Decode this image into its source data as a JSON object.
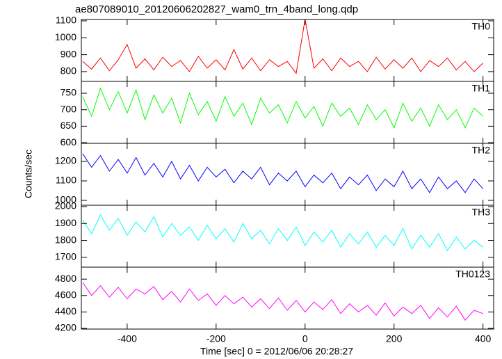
{
  "figure": {
    "title": "ae807089010_20120606202827_wam0_trn_4band_long.qdp",
    "ylabel": "Counts/sec",
    "xlabel": "Time [sec] 0 = 2012/06/06 20:28:27",
    "x": [
      -500,
      -480,
      -460,
      -440,
      -420,
      -400,
      -380,
      -360,
      -340,
      -320,
      -300,
      -280,
      -260,
      -240,
      -220,
      -200,
      -180,
      -160,
      -140,
      -120,
      -100,
      -80,
      -60,
      -40,
      -20,
      0,
      20,
      40,
      60,
      80,
      100,
      120,
      140,
      160,
      180,
      200,
      220,
      240,
      260,
      280,
      300,
      320,
      340,
      360,
      380,
      400
    ],
    "xlim": [
      -503,
      424
    ],
    "xticks": [
      -400,
      -200,
      0,
      200,
      400
    ]
  },
  "chart_data": [
    {
      "type": "line",
      "ylim": [
        742,
        1108
      ],
      "yticks": [
        800,
        900,
        1000,
        1100
      ],
      "series": [
        {
          "name": "TH0",
          "color": "#ff0000",
          "values": [
            860,
            815,
            880,
            805,
            870,
            960,
            820,
            875,
            810,
            885,
            830,
            865,
            800,
            890,
            820,
            870,
            810,
            930,
            815,
            880,
            805,
            870,
            830,
            860,
            790,
            1110,
            820,
            875,
            805,
            880,
            830,
            860,
            800,
            885,
            815,
            870,
            820,
            880,
            800,
            865,
            830,
            880,
            810,
            860,
            800,
            850
          ]
        }
      ]
    },
    {
      "type": "line",
      "ylim": [
        598,
        786
      ],
      "yticks": [
        600,
        650,
        700,
        750
      ],
      "series": [
        {
          "name": "TH1",
          "color": "#00ff00",
          "values": [
            740,
            680,
            765,
            700,
            755,
            690,
            760,
            670,
            745,
            690,
            735,
            660,
            750,
            685,
            725,
            665,
            740,
            680,
            720,
            655,
            735,
            690,
            715,
            660,
            725,
            675,
            710,
            650,
            720,
            680,
            705,
            655,
            715,
            670,
            700,
            645,
            720,
            665,
            705,
            650,
            715,
            670,
            700,
            645,
            705,
            680
          ]
        }
      ]
    },
    {
      "type": "line",
      "ylim": [
        975,
        1293
      ],
      "yticks": [
        1000,
        1100,
        1200
      ],
      "series": [
        {
          "name": "TH2",
          "color": "#0000ff",
          "values": [
            1240,
            1170,
            1230,
            1150,
            1210,
            1140,
            1220,
            1130,
            1190,
            1120,
            1200,
            1110,
            1180,
            1100,
            1170,
            1120,
            1160,
            1090,
            1150,
            1110,
            1170,
            1080,
            1140,
            1100,
            1150,
            1070,
            1130,
            1090,
            1140,
            1060,
            1120,
            1080,
            1130,
            1050,
            1110,
            1070,
            1150,
            1060,
            1110,
            1040,
            1120,
            1060,
            1100,
            1040,
            1110,
            1060
          ]
        }
      ]
    },
    {
      "type": "line",
      "ylim": [
        1642,
        2008
      ],
      "yticks": [
        1700,
        1800,
        1900,
        2000
      ],
      "series": [
        {
          "name": "TH3",
          "color": "#00ffff",
          "values": [
            1920,
            1840,
            1950,
            1860,
            1930,
            1830,
            1910,
            1850,
            1940,
            1820,
            1900,
            1830,
            1880,
            1800,
            1890,
            1810,
            1870,
            1790,
            1900,
            1810,
            1860,
            1780,
            1870,
            1800,
            1880,
            1770,
            1850,
            1790,
            1860,
            1760,
            1840,
            1780,
            1850,
            1760,
            1830,
            1770,
            1870,
            1750,
            1830,
            1760,
            1840,
            1740,
            1820,
            1750,
            1800,
            1760
          ]
        }
      ]
    },
    {
      "type": "line",
      "ylim": [
        4191,
        4946
      ],
      "yticks": [
        4200,
        4400,
        4600,
        4800
      ],
      "series": [
        {
          "name": "TH0123",
          "color": "#ff00ff",
          "values": [
            4760,
            4600,
            4720,
            4580,
            4700,
            4560,
            4680,
            4620,
            4710,
            4550,
            4650,
            4520,
            4680,
            4540,
            4620,
            4480,
            4600,
            4500,
            4580,
            4460,
            4560,
            4440,
            4570,
            4420,
            4540,
            4400,
            4520,
            4430,
            4550,
            4380,
            4500,
            4400,
            4480,
            4360,
            4510,
            4350,
            4460,
            4380,
            4480,
            4320,
            4450,
            4340,
            4470,
            4300,
            4420,
            4380
          ]
        }
      ]
    }
  ]
}
